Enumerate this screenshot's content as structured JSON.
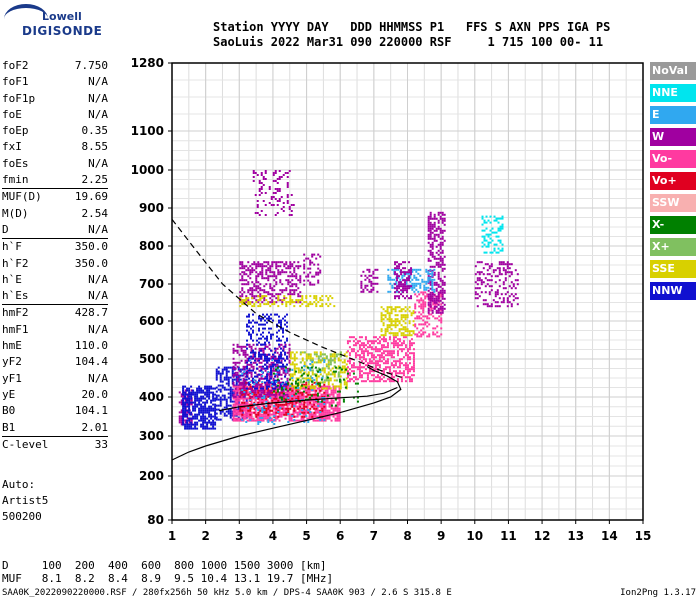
{
  "logo": {
    "line1": "Lowell",
    "line2": "DIGISONDE"
  },
  "header": {
    "line1": "Station YYYY DAY   DDD HHMMSS P1   FFS S AXN PPS IGA PS",
    "line2": "SaoLuis 2022 Mar31 090 220000 RSF     1 715 100 00- 11"
  },
  "params": [
    {
      "name": "foF2",
      "value": "7.750"
    },
    {
      "name": "foF1",
      "value": "N/A"
    },
    {
      "name": "foF1p",
      "value": "N/A"
    },
    {
      "name": "foE",
      "value": "N/A"
    },
    {
      "name": "foEp",
      "value": "0.35"
    },
    {
      "name": "fxI",
      "value": "8.55"
    },
    {
      "name": "foEs",
      "value": "N/A"
    },
    {
      "name": "fmin",
      "value": "2.25",
      "sep_after": true
    },
    {
      "name": "MUF(D)",
      "value": "19.69"
    },
    {
      "name": "M(D)",
      "value": "2.54"
    },
    {
      "name": "D",
      "value": "N/A",
      "sep_after": true
    },
    {
      "name": "h`F",
      "value": "350.0"
    },
    {
      "name": "h`F2",
      "value": "350.0"
    },
    {
      "name": "h`E",
      "value": "N/A"
    },
    {
      "name": "h`Es",
      "value": "N/A",
      "sep_after": true
    },
    {
      "name": "hmF2",
      "value": "428.7"
    },
    {
      "name": "hmF1",
      "value": "N/A"
    },
    {
      "name": "hmE",
      "value": "110.0"
    },
    {
      "name": "yF2",
      "value": "104.4"
    },
    {
      "name": "yF1",
      "value": "N/A"
    },
    {
      "name": "yE",
      "value": "20.0"
    },
    {
      "name": "B0",
      "value": "104.1"
    },
    {
      "name": "B1",
      "value": "2.01",
      "sep_after": true
    },
    {
      "name": "C-level",
      "value": "33",
      "sep_after": true
    }
  ],
  "auto": [
    "Auto:",
    "Artist5",
    "500200"
  ],
  "legend": [
    {
      "label": "NoVal",
      "color": "#9a9a9a"
    },
    {
      "label": "NNE",
      "color": "#00e5ee"
    },
    {
      "label": "E",
      "color": "#30a8f0"
    },
    {
      "label": "W",
      "color": "#a000a0"
    },
    {
      "label": "Vo-",
      "color": "#ff3aa0"
    },
    {
      "label": "Vo+",
      "color": "#e00020"
    },
    {
      "label": "SSW",
      "color": "#f8b0b0"
    },
    {
      "label": "X-",
      "color": "#008000"
    },
    {
      "label": "X+",
      "color": "#80c060"
    },
    {
      "label": "SSE",
      "color": "#d8d000"
    },
    {
      "label": "NNW",
      "color": "#1010d0"
    }
  ],
  "footer": {
    "d_line": "D     100  200  400  600  800 1000 1500 3000 [km]",
    "muf_line": "MUF   8.1  8.2  8.4  8.9  9.5 10.4 13.1 19.7 [MHz]",
    "bottom_left": "SAA0K_2022090220000.RSF / 280fx256h 50 kHz 5.0 km / DPS-4 SAA0K 903 / 2.6 S 315.8 E",
    "bottom_right": "Ion2Png 1.3.17"
  },
  "chart_data": {
    "type": "scatter",
    "x_ticks": [
      "1",
      "2",
      "3",
      "4",
      "5",
      "6",
      "7",
      "8",
      "9",
      "10",
      "11",
      "12",
      "13",
      "14",
      "15"
    ],
    "y_ticks": [
      "80",
      "200",
      "300",
      "400",
      "500",
      "600",
      "700",
      "800",
      "900",
      "1000",
      "1100",
      "1280"
    ],
    "xlim": [
      1,
      15
    ],
    "ylim": [
      80,
      1280
    ],
    "grid": true,
    "y_scale": "nonlinear",
    "legend_position": "right",
    "clusters": [
      {
        "series": "W",
        "x_range": [
          1.2,
          1.6
        ],
        "y_range": [
          330,
          420
        ],
        "density": 0.6
      },
      {
        "series": "NNW",
        "x_range": [
          1.3,
          2.3
        ],
        "y_range": [
          320,
          430
        ],
        "density": 0.7
      },
      {
        "series": "NNW",
        "x_range": [
          2.3,
          3.2
        ],
        "y_range": [
          340,
          480
        ],
        "density": 0.55
      },
      {
        "series": "Vo-",
        "x_range": [
          2.8,
          6.0
        ],
        "y_range": [
          340,
          430
        ],
        "density": 0.75
      },
      {
        "series": "Vo+",
        "x_range": [
          3.0,
          5.5
        ],
        "y_range": [
          350,
          440
        ],
        "density": 0.35
      },
      {
        "series": "W",
        "x_range": [
          2.8,
          4.5
        ],
        "y_range": [
          400,
          540
        ],
        "density": 0.45
      },
      {
        "series": "NNW",
        "x_range": [
          3.2,
          4.4
        ],
        "y_range": [
          420,
          620
        ],
        "density": 0.3
      },
      {
        "series": "SSE",
        "x_range": [
          4.5,
          6.2
        ],
        "y_range": [
          420,
          520
        ],
        "density": 0.4
      },
      {
        "series": "X+",
        "x_range": [
          4.8,
          6.0
        ],
        "y_range": [
          440,
          520
        ],
        "density": 0.25
      },
      {
        "series": "Vo-",
        "x_range": [
          6.2,
          8.2
        ],
        "y_range": [
          440,
          560
        ],
        "density": 0.5
      },
      {
        "series": "SSE",
        "x_range": [
          7.2,
          8.2
        ],
        "y_range": [
          560,
          640
        ],
        "density": 0.5
      },
      {
        "series": "Vo-",
        "x_range": [
          8.2,
          9.0
        ],
        "y_range": [
          560,
          680
        ],
        "density": 0.4
      },
      {
        "series": "W",
        "x_range": [
          8.6,
          9.1
        ],
        "y_range": [
          620,
          890
        ],
        "density": 0.45
      },
      {
        "series": "W",
        "x_range": [
          3.0,
          4.8
        ],
        "y_range": [
          650,
          760
        ],
        "density": 0.45
      },
      {
        "series": "SSE",
        "x_range": [
          3.0,
          5.8
        ],
        "y_range": [
          640,
          670
        ],
        "density": 0.35
      },
      {
        "series": "W",
        "x_range": [
          4.9,
          5.4
        ],
        "y_range": [
          700,
          780
        ],
        "density": 0.35
      },
      {
        "series": "W",
        "x_range": [
          6.6,
          7.1
        ],
        "y_range": [
          680,
          740
        ],
        "density": 0.4
      },
      {
        "series": "E",
        "x_range": [
          7.4,
          8.8
        ],
        "y_range": [
          680,
          740
        ],
        "density": 0.4
      },
      {
        "series": "W",
        "x_range": [
          7.6,
          8.1
        ],
        "y_range": [
          660,
          760
        ],
        "density": 0.45
      },
      {
        "series": "NNE",
        "x_range": [
          10.2,
          10.8
        ],
        "y_range": [
          780,
          880
        ],
        "density": 0.35
      },
      {
        "series": "W",
        "x_range": [
          10.0,
          11.3
        ],
        "y_range": [
          640,
          760
        ],
        "density": 0.3
      },
      {
        "series": "W",
        "x_range": [
          3.4,
          4.6
        ],
        "y_range": [
          880,
          1000
        ],
        "density": 0.2
      },
      {
        "series": "E",
        "x_range": [
          3.0,
          5.5
        ],
        "y_range": [
          330,
          500
        ],
        "density": 0.08
      },
      {
        "series": "X-",
        "x_range": [
          4.0,
          6.5
        ],
        "y_range": [
          380,
          480
        ],
        "density": 0.1
      }
    ],
    "curves": [
      {
        "style": "dashed",
        "points": [
          [
            1.0,
            870
          ],
          [
            1.7,
            790
          ],
          [
            2.5,
            700
          ],
          [
            3.5,
            620
          ],
          [
            4.5,
            570
          ],
          [
            5.5,
            530
          ],
          [
            6.5,
            495
          ],
          [
            7.2,
            470
          ],
          [
            7.7,
            455
          ],
          [
            7.9,
            450
          ]
        ]
      },
      {
        "style": "solid",
        "points": [
          [
            1.0,
            240
          ],
          [
            1.5,
            260
          ],
          [
            2.0,
            275
          ],
          [
            3.0,
            300
          ],
          [
            4.0,
            320
          ],
          [
            5.0,
            340
          ],
          [
            6.0,
            360
          ],
          [
            7.0,
            385
          ],
          [
            7.5,
            400
          ],
          [
            7.8,
            420
          ],
          [
            7.7,
            440
          ],
          [
            7.4,
            455
          ],
          [
            7.0,
            470
          ],
          [
            6.8,
            480
          ]
        ]
      },
      {
        "style": "solid",
        "points": [
          [
            2.4,
            365
          ],
          [
            3.0,
            375
          ],
          [
            4.0,
            385
          ],
          [
            5.0,
            392
          ],
          [
            6.0,
            398
          ],
          [
            6.8,
            402
          ],
          [
            7.3,
            410
          ],
          [
            7.7,
            425
          ]
        ]
      }
    ]
  }
}
